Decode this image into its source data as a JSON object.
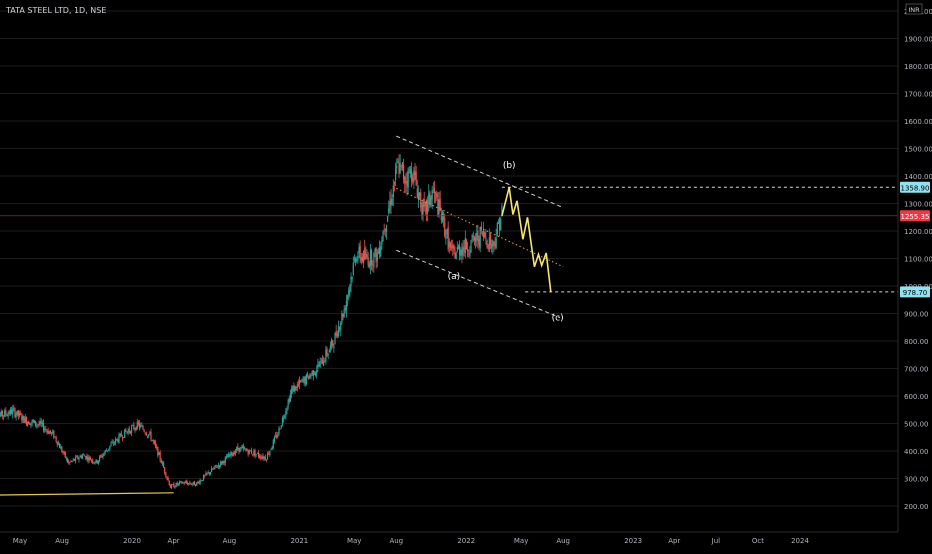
{
  "header": {
    "symbol": "TATA STEEL LTD, 1D, NSE",
    "currency": "INR"
  },
  "colors": {
    "background": "#000000",
    "up": "#26a69a",
    "down": "#ef5350",
    "projection": "#f5e66b",
    "trendline": "#e6c84a",
    "channel": "#cfcfcf",
    "current_price": "#f23645",
    "level_tag": "#8fe3f0",
    "axis_text": "#b2b5be",
    "grid": "#1c1c1c"
  },
  "chart_data": {
    "type": "candlestick",
    "title": "TATA STEEL LTD, 1D, NSE",
    "y_axis": {
      "min": 150,
      "max": 2000,
      "scale": "linear",
      "ticks": [
        2000,
        1900,
        1800,
        1700,
        1600,
        1500,
        1400,
        1300,
        1200,
        1100,
        1000,
        900,
        800,
        700,
        600,
        500,
        400,
        300,
        200
      ],
      "tick_labels": [
        "2000.00",
        "1900.00",
        "1800.00",
        "1700.00",
        "1600.00",
        "1500.00",
        "1400.00",
        "1300.00",
        "1200.00",
        "1100.00",
        "1000.00",
        "900.00",
        "800.00",
        "700.00",
        "600.00",
        "500.00",
        "400.00",
        "300.00",
        "200.00"
      ],
      "currency_label": "INR"
    },
    "x_axis": {
      "labels": [
        {
          "label": "May",
          "date": "2019-05-01"
        },
        {
          "label": "Aug",
          "date": "2019-08-01"
        },
        {
          "label": "2020",
          "date": "2020-01-01"
        },
        {
          "label": "Apr",
          "date": "2020-04-01"
        },
        {
          "label": "Aug",
          "date": "2020-08-01"
        },
        {
          "label": "2021",
          "date": "2021-01-01"
        },
        {
          "label": "May",
          "date": "2021-05-01"
        },
        {
          "label": "Aug",
          "date": "2021-08-01"
        },
        {
          "label": "2022",
          "date": "2022-01-01"
        },
        {
          "label": "May",
          "date": "2022-05-01"
        },
        {
          "label": "Aug",
          "date": "2022-08-01"
        },
        {
          "label": "2023",
          "date": "2023-01-01"
        },
        {
          "label": "Apr",
          "date": "2023-04-01"
        },
        {
          "label": "Jul",
          "date": "2023-07-01"
        },
        {
          "label": "Oct",
          "date": "2023-10-01"
        },
        {
          "label": "2024",
          "date": "2024-01-01"
        }
      ]
    },
    "price_path": [
      [
        "2019-03-01",
        520
      ],
      [
        "2019-04-15",
        545
      ],
      [
        "2019-05-15",
        510
      ],
      [
        "2019-06-15",
        495
      ],
      [
        "2019-07-15",
        455
      ],
      [
        "2019-08-15",
        355
      ],
      [
        "2019-09-15",
        385
      ],
      [
        "2019-10-15",
        360
      ],
      [
        "2019-11-15",
        420
      ],
      [
        "2019-12-15",
        465
      ],
      [
        "2020-01-15",
        495
      ],
      [
        "2020-02-10",
        455
      ],
      [
        "2020-03-01",
        380
      ],
      [
        "2020-03-25",
        270
      ],
      [
        "2020-04-20",
        285
      ],
      [
        "2020-05-20",
        280
      ],
      [
        "2020-06-20",
        325
      ],
      [
        "2020-07-20",
        365
      ],
      [
        "2020-08-20",
        410
      ],
      [
        "2020-09-20",
        395
      ],
      [
        "2020-10-20",
        375
      ],
      [
        "2020-11-15",
        465
      ],
      [
        "2020-12-15",
        620
      ],
      [
        "2021-01-15",
        660
      ],
      [
        "2021-02-15",
        715
      ],
      [
        "2021-03-15",
        790
      ],
      [
        "2021-04-10",
        920
      ],
      [
        "2021-05-05",
        1120
      ],
      [
        "2021-05-25",
        1100
      ],
      [
        "2021-06-20",
        1110
      ],
      [
        "2021-07-15",
        1280
      ],
      [
        "2021-08-05",
        1440
      ],
      [
        "2021-08-20",
        1390
      ],
      [
        "2021-09-05",
        1420
      ],
      [
        "2021-10-01",
        1260
      ],
      [
        "2021-10-20",
        1345
      ],
      [
        "2021-11-10",
        1240
      ],
      [
        "2021-12-01",
        1110
      ],
      [
        "2021-12-20",
        1140
      ],
      [
        "2022-01-10",
        1150
      ],
      [
        "2022-02-05",
        1190
      ],
      [
        "2022-03-01",
        1150
      ],
      [
        "2022-03-20",
        1270
      ]
    ],
    "projection_path": [
      [
        "2022-03-20",
        1255
      ],
      [
        "2022-04-05",
        1358.9
      ],
      [
        "2022-04-13",
        1260
      ],
      [
        "2022-04-22",
        1310
      ],
      [
        "2022-05-05",
        1170
      ],
      [
        "2022-05-15",
        1250
      ],
      [
        "2022-05-30",
        1070
      ],
      [
        "2022-06-08",
        1115
      ],
      [
        "2022-06-15",
        1075
      ],
      [
        "2022-06-25",
        1120
      ],
      [
        "2022-07-05",
        978.7
      ]
    ],
    "channel_lines": [
      {
        "style": "dashed",
        "from": [
          "2021-08-01",
          1545
        ],
        "to": [
          "2022-08-01",
          1285
        ]
      },
      {
        "style": "dotted",
        "from": [
          "2021-08-01",
          1355
        ],
        "to": [
          "2022-08-01",
          1070
        ]
      },
      {
        "style": "dashed",
        "from": [
          "2021-08-01",
          1130
        ],
        "to": [
          "2022-07-25",
          885
        ]
      }
    ],
    "level_lines": [
      {
        "price": 1358.9,
        "label": "1358.90",
        "from": "2022-03-20"
      },
      {
        "price": 978.7,
        "label": "978.70",
        "from": "2022-05-10"
      }
    ],
    "trendline": {
      "from": [
        "2019-01-20",
        240
      ],
      "to": [
        "2020-04-01",
        248
      ]
    },
    "current_price": {
      "price": 1255.35,
      "label": "1255.35"
    },
    "annotations": [
      {
        "text": "(a)",
        "date": "2021-12-05",
        "price": 1025
      },
      {
        "text": "(b)",
        "date": "2022-04-05",
        "price": 1430
      },
      {
        "text": "(c)",
        "date": "2022-07-20",
        "price": 875
      }
    ]
  }
}
